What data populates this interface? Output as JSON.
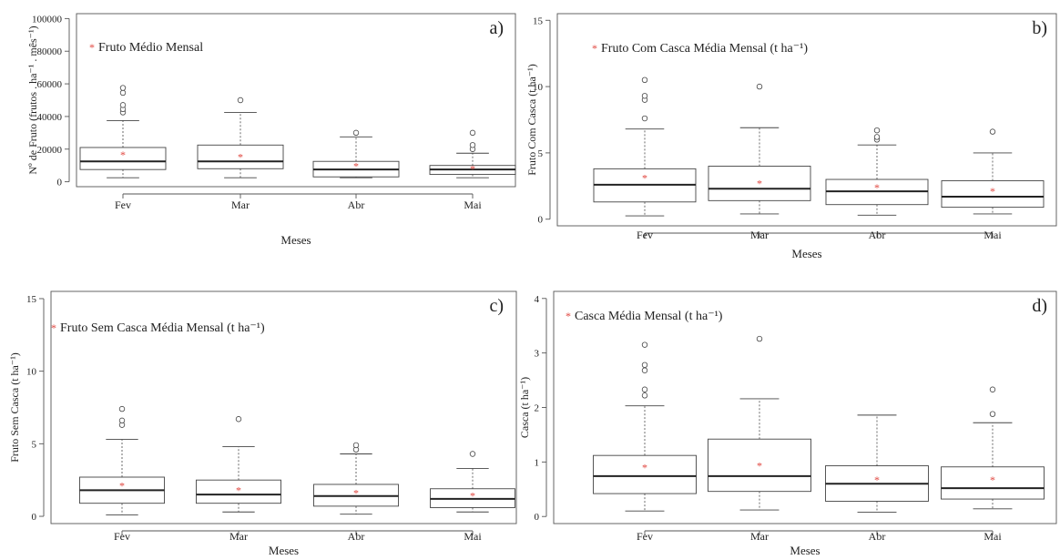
{
  "chart_data": [
    {
      "type": "box",
      "panel_label": "a)",
      "legend": {
        "symbol": "*",
        "text": "Fruto Médio Mensal",
        "position": "top-left"
      },
      "xlabel": "Meses",
      "ylabel": "Nº de Fruto (frutos . ha⁻¹ . mês⁻¹)",
      "ylim": [
        -3000,
        103000
      ],
      "yticks": [
        0,
        20000,
        40000,
        60000,
        80000,
        100000
      ],
      "ytick_labels": [
        "0",
        "20000",
        "40000",
        "60000",
        "80000",
        "100000"
      ],
      "categories": [
        "Fev",
        "Mar",
        "Abr",
        "Mai"
      ],
      "boxes": [
        {
          "low": 2500,
          "q1": 7500,
          "median": 12500,
          "q3": 21000,
          "high": 37500,
          "mean": 16500,
          "outliers": [
            42500,
            44500,
            47000,
            54500,
            57500
          ]
        },
        {
          "low": 2500,
          "q1": 8000,
          "median": 12500,
          "q3": 22500,
          "high": 42500,
          "mean": 15000,
          "outliers": [
            50000
          ]
        },
        {
          "low": 2500,
          "q1": 3000,
          "median": 7500,
          "q3": 12500,
          "high": 27500,
          "mean": 9500,
          "outliers": [
            30000
          ]
        },
        {
          "low": 2500,
          "q1": 4500,
          "median": 7500,
          "q3": 10000,
          "high": 17500,
          "mean": 8000,
          "outliers": [
            20000,
            22500,
            30000
          ]
        }
      ]
    },
    {
      "type": "box",
      "panel_label": "b)",
      "legend": {
        "symbol": "*",
        "text": "Fruto Com Casca Média Mensal",
        "unit": "t ha⁻¹",
        "position": "top-left"
      },
      "xlabel": "Meses",
      "ylabel": "Fruto Com Casca (t ha⁻¹)",
      "ylim": [
        -0.5,
        15.5
      ],
      "yticks": [
        0,
        5,
        10,
        15
      ],
      "ytick_labels": [
        "0",
        "5",
        "10",
        "15"
      ],
      "categories": [
        "Fev",
        "Mar",
        "Abr",
        "Mai"
      ],
      "boxes": [
        {
          "low": 0.25,
          "q1": 1.3,
          "median": 2.6,
          "q3": 3.8,
          "high": 6.8,
          "mean": 3.1,
          "outliers": [
            7.6,
            9.0,
            9.3,
            10.5
          ]
        },
        {
          "low": 0.4,
          "q1": 1.4,
          "median": 2.3,
          "q3": 4.0,
          "high": 6.9,
          "mean": 2.7,
          "outliers": [
            10.0
          ]
        },
        {
          "low": 0.3,
          "q1": 1.1,
          "median": 2.1,
          "q3": 3.0,
          "high": 5.6,
          "mean": 2.4,
          "outliers": [
            6.0,
            6.2,
            6.7
          ]
        },
        {
          "low": 0.4,
          "q1": 0.9,
          "median": 1.7,
          "q3": 2.9,
          "high": 5.0,
          "mean": 2.1,
          "outliers": [
            6.6
          ]
        }
      ]
    },
    {
      "type": "box",
      "panel_label": "c)",
      "legend": {
        "symbol": "*",
        "text": "Fruto Sem Casca Média Mensal",
        "unit": "t ha⁻¹",
        "position": "top-left"
      },
      "xlabel": "Meses",
      "ylabel": "Fruto Sem Casca (t ha⁻¹)",
      "ylim": [
        -0.5,
        15.5
      ],
      "yticks": [
        0,
        5,
        10,
        15
      ],
      "ytick_labels": [
        "0",
        "5",
        "10",
        "15"
      ],
      "categories": [
        "Fev",
        "Mar",
        "Abr",
        "Mai"
      ],
      "boxes": [
        {
          "low": 0.1,
          "q1": 0.9,
          "median": 1.8,
          "q3": 2.7,
          "high": 5.3,
          "mean": 2.1,
          "outliers": [
            6.3,
            6.6,
            7.4
          ]
        },
        {
          "low": 0.3,
          "q1": 0.9,
          "median": 1.5,
          "q3": 2.5,
          "high": 4.8,
          "mean": 1.8,
          "outliers": [
            6.7
          ]
        },
        {
          "low": 0.15,
          "q1": 0.7,
          "median": 1.4,
          "q3": 2.2,
          "high": 4.3,
          "mean": 1.6,
          "outliers": [
            4.6,
            4.9
          ]
        },
        {
          "low": 0.3,
          "q1": 0.6,
          "median": 1.2,
          "q3": 1.9,
          "high": 3.3,
          "mean": 1.4,
          "outliers": [
            4.3
          ]
        }
      ]
    },
    {
      "type": "box",
      "panel_label": "d)",
      "legend": {
        "symbol": "*",
        "text": "Casca Média Mensal",
        "unit": "t ha⁻¹",
        "position": "top-left"
      },
      "xlabel": "Meses",
      "ylabel": "Casca (t ha⁻¹)",
      "ylim": [
        -0.13,
        4.13
      ],
      "yticks": [
        0,
        1,
        2,
        3,
        4
      ],
      "ytick_labels": [
        "0",
        "1",
        "2",
        "3",
        "4"
      ],
      "categories": [
        "Fev",
        "Mar",
        "Abr",
        "Mai"
      ],
      "boxes": [
        {
          "low": 0.1,
          "q1": 0.42,
          "median": 0.74,
          "q3": 1.12,
          "high": 2.03,
          "mean": 0.9,
          "outliers": [
            2.22,
            2.33,
            2.68,
            2.78,
            3.15
          ]
        },
        {
          "low": 0.12,
          "q1": 0.46,
          "median": 0.74,
          "q3": 1.42,
          "high": 2.16,
          "mean": 0.93,
          "outliers": [
            3.26
          ]
        },
        {
          "low": 0.08,
          "q1": 0.28,
          "median": 0.6,
          "q3": 0.93,
          "high": 1.86,
          "mean": 0.67,
          "outliers": []
        },
        {
          "low": 0.14,
          "q1": 0.32,
          "median": 0.52,
          "q3": 0.91,
          "high": 1.72,
          "mean": 0.67,
          "outliers": [
            1.88,
            2.33
          ]
        }
      ]
    }
  ]
}
